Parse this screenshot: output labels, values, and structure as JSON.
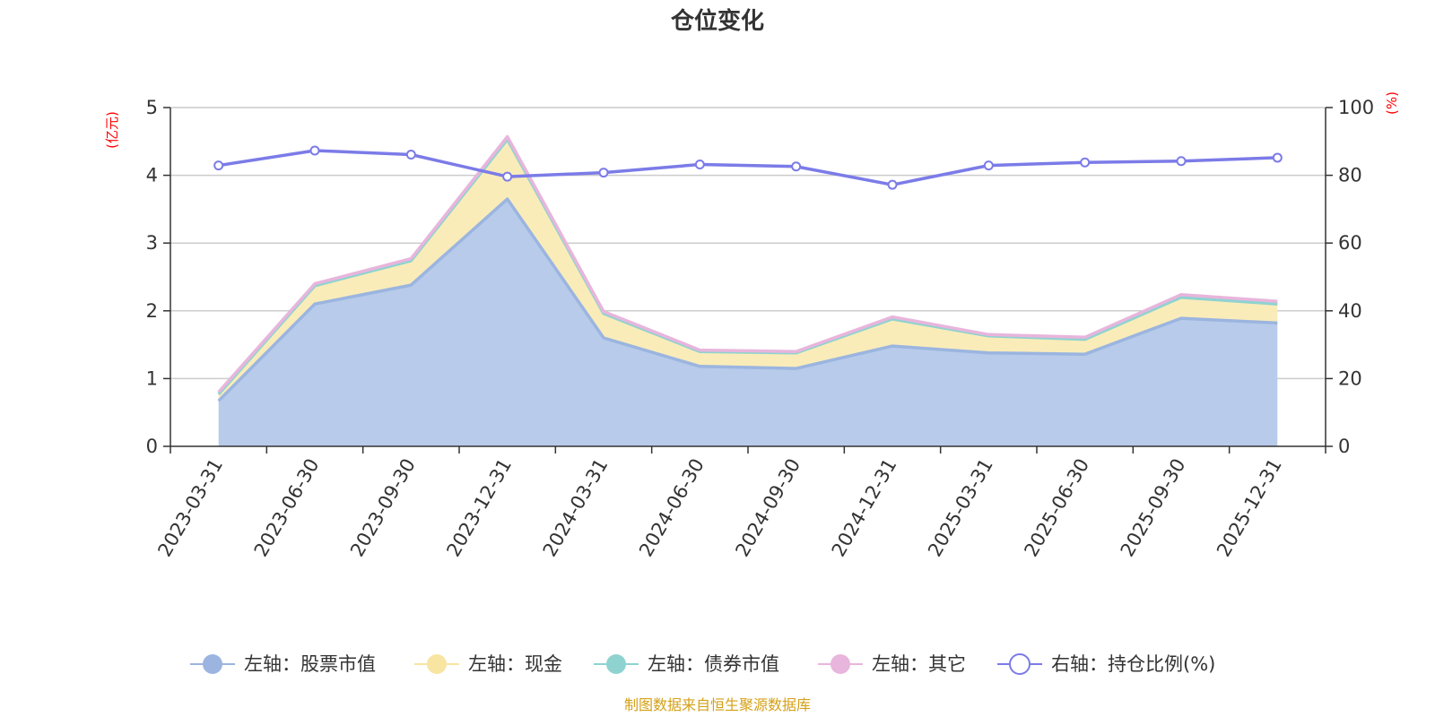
{
  "chart_data": {
    "type": "area",
    "title": "仓位变化",
    "left_axis_unit": "(亿元)",
    "right_axis_unit": "(%)",
    "categories": [
      "2023-03-31",
      "2023-06-30",
      "2023-09-30",
      "2023-12-31",
      "2024-03-31",
      "2024-06-30",
      "2024-09-30",
      "2024-12-31",
      "2025-03-31",
      "2025-06-30",
      "2025-09-30",
      "2025-12-31"
    ],
    "y_left": {
      "min": 0,
      "max": 5,
      "ticks": [
        "0",
        "1",
        "2",
        "3",
        "4",
        "5"
      ]
    },
    "y_right": {
      "min": 0,
      "max": 100,
      "ticks": [
        "0",
        "20",
        "40",
        "60",
        "80",
        "100"
      ]
    },
    "grid": true,
    "legend_position": "bottom",
    "series": [
      {
        "name": "左轴：股票市值",
        "axis": "left",
        "kind": "stacked-area",
        "color": "#9bb5e0",
        "fill": "#b8cbea",
        "values": [
          0.67,
          2.1,
          2.38,
          3.65,
          1.6,
          1.18,
          1.15,
          1.48,
          1.38,
          1.36,
          1.89,
          1.82
        ]
      },
      {
        "name": "左轴：现金",
        "axis": "left",
        "kind": "stacked-area",
        "color": "#f7e5a1",
        "fill": "#faecb9",
        "values": [
          0.1,
          0.27,
          0.36,
          0.88,
          0.36,
          0.22,
          0.23,
          0.4,
          0.25,
          0.22,
          0.31,
          0.28
        ]
      },
      {
        "name": "左轴：债券市值",
        "axis": "left",
        "kind": "stacked-area",
        "color": "#8fd3d1",
        "fill": "#b9e4e3",
        "values": [
          0,
          0,
          0,
          0,
          0,
          0,
          0,
          0,
          0,
          0,
          0,
          0
        ]
      },
      {
        "name": "左轴：其它",
        "axis": "left",
        "kind": "stacked-area",
        "color": "#e8b5dc",
        "fill": "#f0cde8",
        "values": [
          0.03,
          0.03,
          0.03,
          0.04,
          0.03,
          0.02,
          0.02,
          0.03,
          0.02,
          0.03,
          0.04,
          0.04
        ]
      },
      {
        "name": "右轴：持仓比例(%)",
        "axis": "right",
        "kind": "line",
        "color": "#7b7be8",
        "values": [
          82.9,
          87.3,
          86.1,
          79.6,
          80.8,
          83.2,
          82.6,
          77.2,
          82.9,
          83.8,
          84.2,
          85.2
        ]
      }
    ],
    "source": "制图数据来自恒生聚源数据库"
  }
}
